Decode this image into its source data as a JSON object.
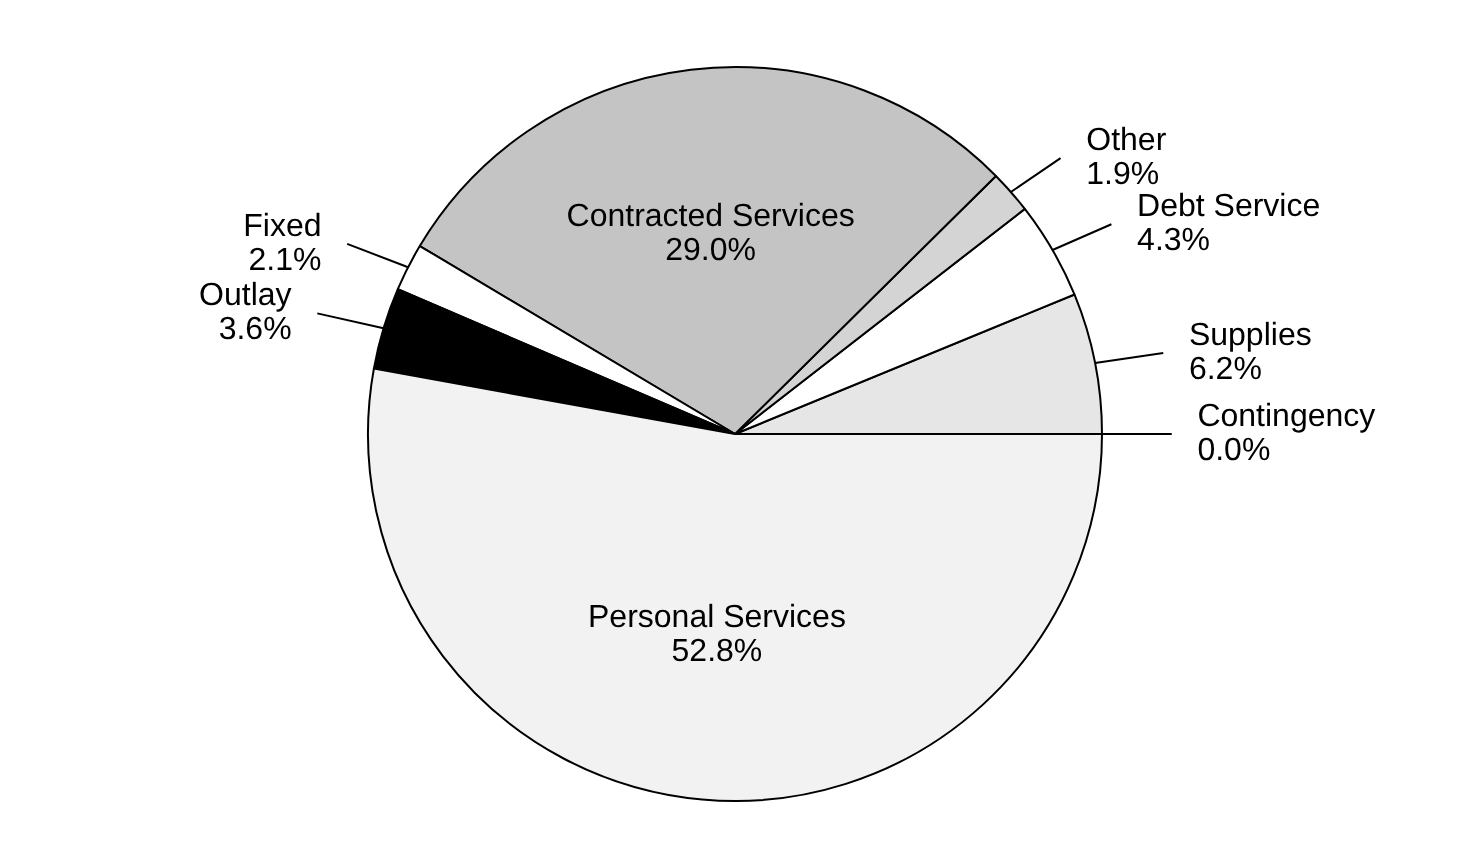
{
  "chart_data": {
    "type": "pie",
    "categories": [
      "Contingency",
      "Supplies",
      "Debt Service",
      "Other",
      "Contracted Services",
      "Fixed",
      "Outlay",
      "Personal Services"
    ],
    "values": [
      0.0,
      6.2,
      4.3,
      1.9,
      29.0,
      2.1,
      3.6,
      52.8
    ],
    "colors": [
      "#ffffff",
      "#e6e6e6",
      "#ffffff",
      "#d4d4d4",
      "#c4c4c4",
      "#ffffff",
      "#000000",
      "#f2f2f2"
    ],
    "value_labels": [
      "0.0%",
      "6.2%",
      "4.3%",
      "1.9%",
      "29.0%",
      "2.1%",
      "3.6%",
      "52.8%"
    ]
  }
}
